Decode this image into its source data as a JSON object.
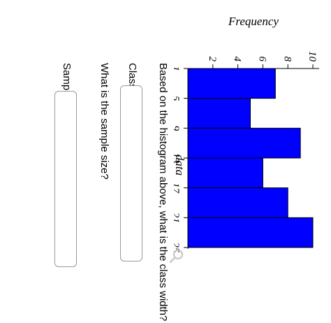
{
  "chart_data": {
    "type": "bar",
    "title": "",
    "ylabel": "Frequency",
    "xlabel": "data",
    "x_ticks": [
      "1",
      "5",
      "9",
      "13",
      "17",
      "21",
      "25"
    ],
    "y_ticks": [
      "2",
      "4",
      "6",
      "8",
      "10"
    ],
    "ylim": [
      0,
      10.5
    ],
    "bins": [
      {
        "start": 1,
        "end": 5,
        "value": 7
      },
      {
        "start": 5,
        "end": 9,
        "value": 5
      },
      {
        "start": 9,
        "end": 13,
        "value": 9
      },
      {
        "start": 13,
        "end": 17,
        "value": 6
      },
      {
        "start": 17,
        "end": 21,
        "value": 8
      },
      {
        "start": 21,
        "end": 25,
        "value": 10
      }
    ],
    "bar_color": "#0000ff",
    "grid": false
  },
  "questions": {
    "q1": "Based on the histogram above, what is the class width?",
    "q1_label": "Class width =",
    "q2": "What is the sample size?",
    "q2_label": "Sample size ="
  },
  "icons": {
    "zoom": "magnifier-icon"
  }
}
